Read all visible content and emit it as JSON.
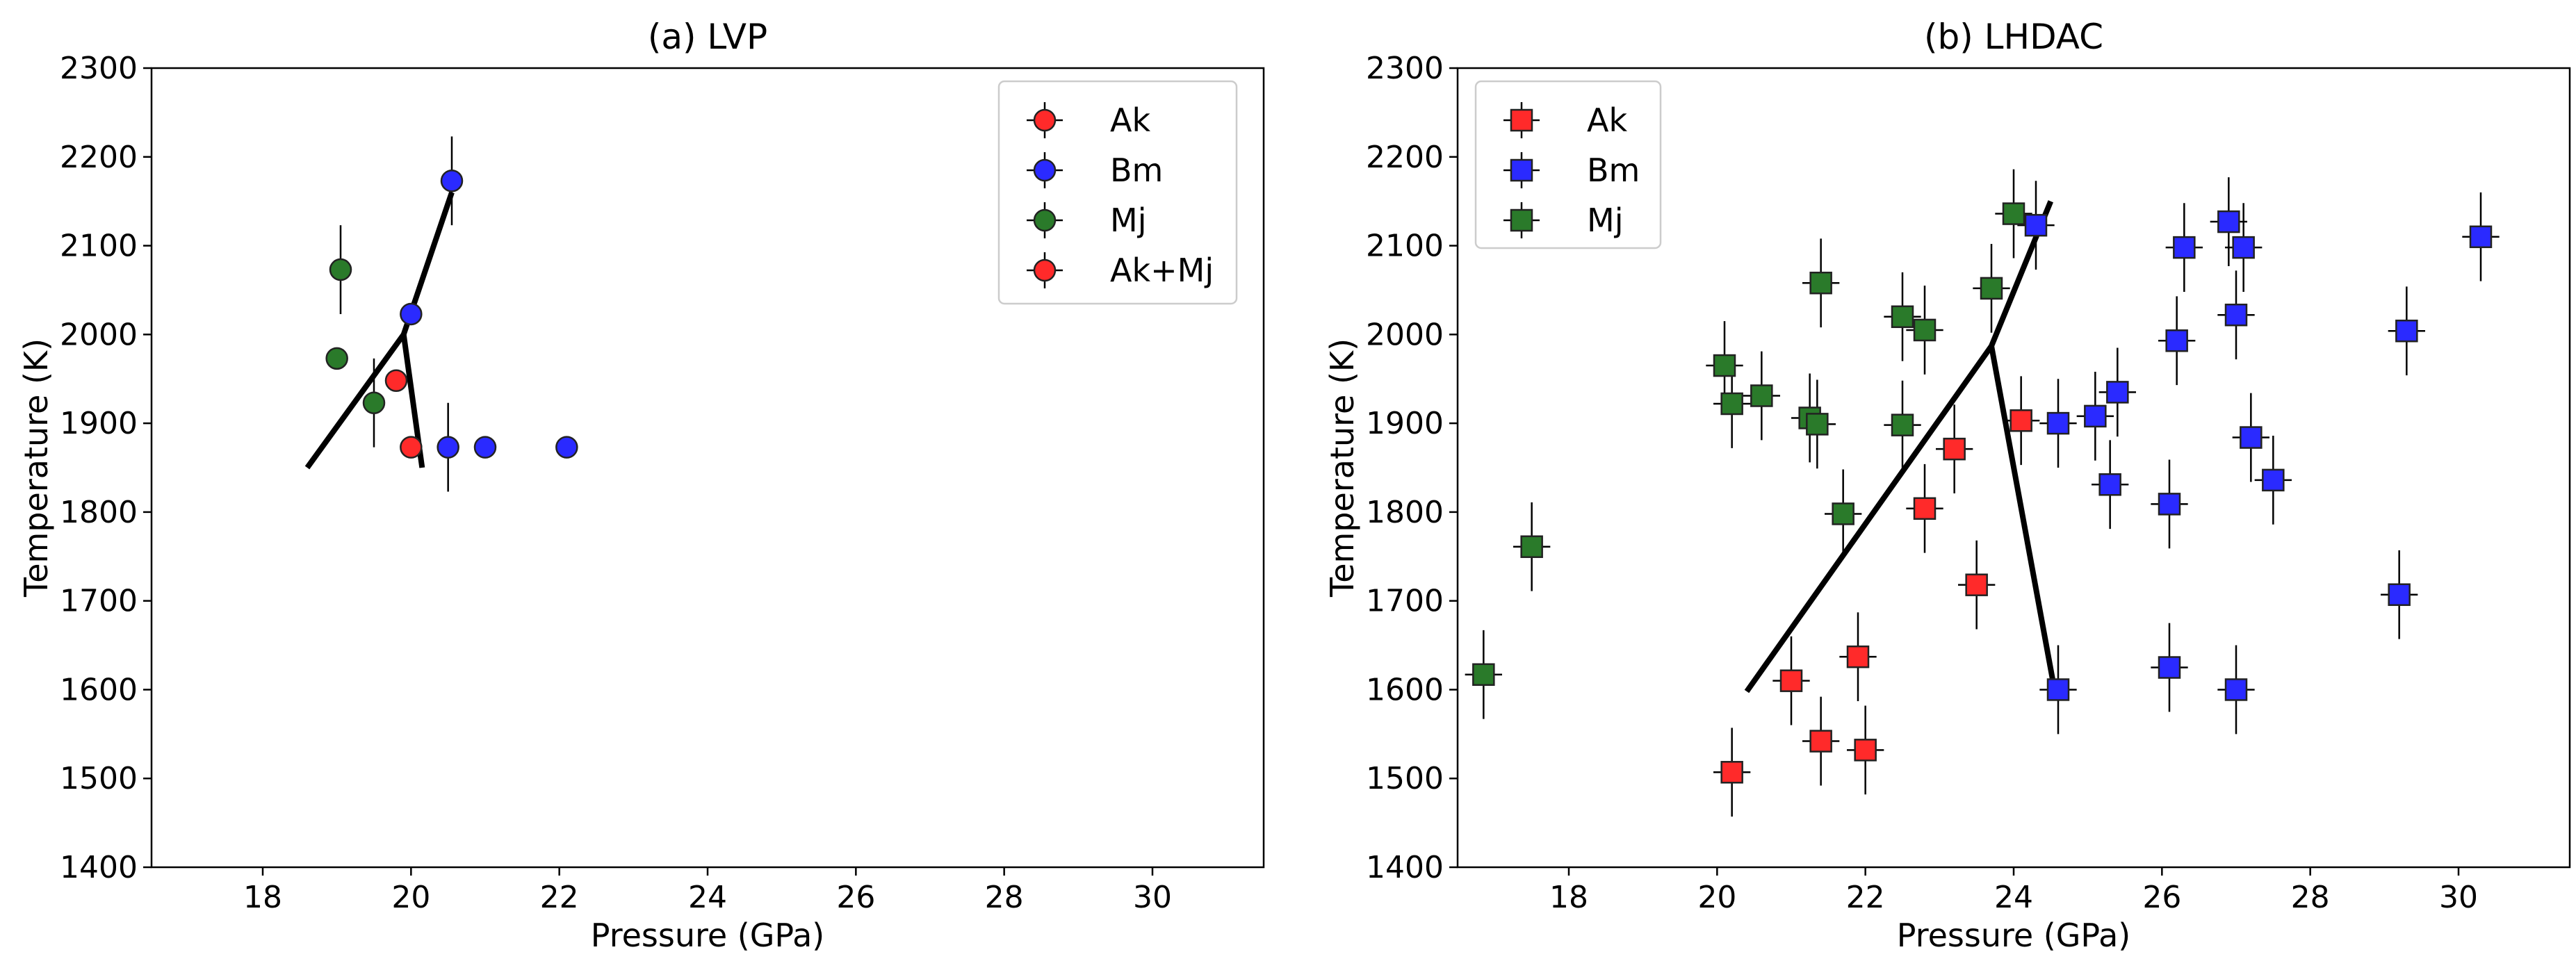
{
  "chart_data": [
    {
      "type": "scatter",
      "title": "(a) LVP",
      "xlabel": "Pressure (GPa)",
      "ylabel": "Temperature (K)",
      "xlim": [
        16.5,
        31.5
      ],
      "ylim": [
        1400,
        2300
      ],
      "xticks": [
        "18",
        "20",
        "22",
        "24",
        "26",
        "28",
        "30"
      ],
      "yticks": [
        "1400",
        "1500",
        "1600",
        "1700",
        "1800",
        "1900",
        "2000",
        "2100",
        "2200",
        "2300"
      ],
      "grid": false,
      "legend_position": "top-right",
      "marker": "circle",
      "series": [
        {
          "name": "Ak",
          "color": "#ff2a2a",
          "points": [
            {
              "x": 19.8,
              "y": 1948,
              "yerr": 0,
              "xerr": 0
            },
            {
              "x": 20.0,
              "y": 1873,
              "yerr": 0,
              "xerr": 0
            }
          ]
        },
        {
          "name": "Bm",
          "color": "#2a2aff",
          "points": [
            {
              "x": 20.55,
              "y": 2173,
              "yerr": 50,
              "xerr": 0
            },
            {
              "x": 20.0,
              "y": 2023,
              "yerr": 0,
              "xerr": 0
            },
            {
              "x": 20.5,
              "y": 1873,
              "yerr": 50,
              "xerr": 0
            },
            {
              "x": 21.0,
              "y": 1873,
              "yerr": 0,
              "xerr": 0
            },
            {
              "x": 22.1,
              "y": 1873,
              "yerr": 0,
              "xerr": 0
            }
          ]
        },
        {
          "name": "Mj",
          "color": "#2a7a2a",
          "points": [
            {
              "x": 19.05,
              "y": 2073,
              "yerr": 50,
              "xerr": 0
            },
            {
              "x": 19.0,
              "y": 1973,
              "yerr": 0,
              "xerr": 0
            },
            {
              "x": 19.5,
              "y": 1923,
              "yerr": 50,
              "xerr": 0
            }
          ]
        },
        {
          "name": "Ak+Mj",
          "color": "#ff2a2a",
          "points": []
        }
      ],
      "boundaries": [
        [
          [
            18.6,
            1850
          ],
          [
            19.9,
            2000
          ],
          [
            20.55,
            2160
          ]
        ],
        [
          [
            19.9,
            2000
          ],
          [
            20.15,
            1850
          ]
        ]
      ]
    },
    {
      "type": "scatter",
      "title": "(b) LHDAC",
      "xlabel": "Pressure (GPa)",
      "ylabel": "Temperature (K)",
      "xlim": [
        16.5,
        31.5
      ],
      "ylim": [
        1400,
        2300
      ],
      "xticks": [
        "18",
        "20",
        "22",
        "24",
        "26",
        "28",
        "30"
      ],
      "yticks": [
        "1400",
        "1500",
        "1600",
        "1700",
        "1800",
        "1900",
        "2000",
        "2100",
        "2200",
        "2300"
      ],
      "grid": false,
      "legend_position": "top-left",
      "marker": "square",
      "series": [
        {
          "name": "Ak",
          "color": "#ff2a2a",
          "points": [
            {
              "x": 20.2,
              "y": 1507,
              "yerr": 50,
              "xerr": 0.25
            },
            {
              "x": 21.4,
              "y": 1542,
              "yerr": 50,
              "xerr": 0.25
            },
            {
              "x": 22.0,
              "y": 1532,
              "yerr": 50,
              "xerr": 0.25
            },
            {
              "x": 21.0,
              "y": 1610,
              "yerr": 50,
              "xerr": 0.25
            },
            {
              "x": 21.9,
              "y": 1637,
              "yerr": 50,
              "xerr": 0.25
            },
            {
              "x": 23.5,
              "y": 1718,
              "yerr": 50,
              "xerr": 0.25
            },
            {
              "x": 22.8,
              "y": 1804,
              "yerr": 50,
              "xerr": 0.25
            },
            {
              "x": 23.2,
              "y": 1871,
              "yerr": 50,
              "xerr": 0.25
            },
            {
              "x": 24.1,
              "y": 1903,
              "yerr": 50,
              "xerr": 0.25
            }
          ]
        },
        {
          "name": "Bm",
          "color": "#2a2aff",
          "points": [
            {
              "x": 24.3,
              "y": 2123,
              "yerr": 50,
              "xerr": 0.25
            },
            {
              "x": 26.3,
              "y": 2098,
              "yerr": 50,
              "xerr": 0.25
            },
            {
              "x": 26.9,
              "y": 2127,
              "yerr": 50,
              "xerr": 0.25
            },
            {
              "x": 27.1,
              "y": 2098,
              "yerr": 50,
              "xerr": 0.25
            },
            {
              "x": 30.3,
              "y": 2110,
              "yerr": 50,
              "xerr": 0.25
            },
            {
              "x": 26.2,
              "y": 1993,
              "yerr": 50,
              "xerr": 0.25
            },
            {
              "x": 27.0,
              "y": 2022,
              "yerr": 50,
              "xerr": 0.25
            },
            {
              "x": 29.3,
              "y": 2004,
              "yerr": 50,
              "xerr": 0.25
            },
            {
              "x": 25.4,
              "y": 1935,
              "yerr": 50,
              "xerr": 0.25
            },
            {
              "x": 24.6,
              "y": 1900,
              "yerr": 50,
              "xerr": 0.25
            },
            {
              "x": 25.1,
              "y": 1908,
              "yerr": 50,
              "xerr": 0.25
            },
            {
              "x": 27.2,
              "y": 1884,
              "yerr": 50,
              "xerr": 0.25
            },
            {
              "x": 25.3,
              "y": 1831,
              "yerr": 50,
              "xerr": 0.25
            },
            {
              "x": 26.1,
              "y": 1809,
              "yerr": 50,
              "xerr": 0.25
            },
            {
              "x": 27.5,
              "y": 1836,
              "yerr": 50,
              "xerr": 0.25
            },
            {
              "x": 29.2,
              "y": 1707,
              "yerr": 50,
              "xerr": 0.25
            },
            {
              "x": 24.6,
              "y": 1600,
              "yerr": 50,
              "xerr": 0.25
            },
            {
              "x": 26.1,
              "y": 1625,
              "yerr": 50,
              "xerr": 0.25
            },
            {
              "x": 27.0,
              "y": 1600,
              "yerr": 50,
              "xerr": 0.25
            }
          ]
        },
        {
          "name": "Mj",
          "color": "#2a7a2a",
          "points": [
            {
              "x": 24.0,
              "y": 2136,
              "yerr": 50,
              "xerr": 0.25
            },
            {
              "x": 21.4,
              "y": 2058,
              "yerr": 50,
              "xerr": 0.25
            },
            {
              "x": 23.7,
              "y": 2052,
              "yerr": 50,
              "xerr": 0.25
            },
            {
              "x": 22.5,
              "y": 2020,
              "yerr": 50,
              "xerr": 0.25
            },
            {
              "x": 22.8,
              "y": 2005,
              "yerr": 50,
              "xerr": 0.25
            },
            {
              "x": 20.1,
              "y": 1965,
              "yerr": 50,
              "xerr": 0.25
            },
            {
              "x": 20.2,
              "y": 1922,
              "yerr": 50,
              "xerr": 0.25
            },
            {
              "x": 20.6,
              "y": 1931,
              "yerr": 50,
              "xerr": 0.25
            },
            {
              "x": 21.25,
              "y": 1906,
              "yerr": 50,
              "xerr": 0.25
            },
            {
              "x": 21.35,
              "y": 1899,
              "yerr": 50,
              "xerr": 0.25
            },
            {
              "x": 22.5,
              "y": 1898,
              "yerr": 50,
              "xerr": 0.25
            },
            {
              "x": 21.7,
              "y": 1798,
              "yerr": 50,
              "xerr": 0.25
            },
            {
              "x": 17.5,
              "y": 1761,
              "yerr": 50,
              "xerr": 0.25
            },
            {
              "x": 16.85,
              "y": 1617,
              "yerr": 50,
              "xerr": 0.25
            }
          ]
        }
      ],
      "boundaries": [
        [
          [
            20.4,
            1598
          ],
          [
            23.7,
            1987
          ],
          [
            24.5,
            2150
          ]
        ],
        [
          [
            23.7,
            1987
          ],
          [
            24.55,
            1600
          ]
        ]
      ]
    }
  ]
}
